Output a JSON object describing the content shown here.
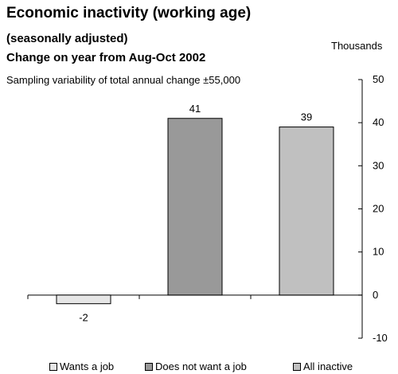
{
  "title": "Economic inactivity (working age)",
  "subtitle1": "(seasonally adjusted)",
  "subtitle2": "Change on year from Aug-Oct 2002",
  "note": "Sampling variability of total annual change  ±55,000",
  "units": "Thousands",
  "chart_data": {
    "type": "bar",
    "categories": [
      "Wants a job",
      "Does not want a job",
      "All inactive"
    ],
    "values": [
      -2,
      41,
      39
    ],
    "data_labels": [
      "-2",
      "41",
      "39"
    ],
    "colors": [
      "#e6e6e6",
      "#999999",
      "#c0c0c0"
    ],
    "ylim": [
      -10,
      50
    ],
    "yticks": [
      -10,
      0,
      10,
      20,
      30,
      40,
      50
    ],
    "ytick_labels": [
      "-10",
      "0",
      "10",
      "20",
      "30",
      "40",
      "50"
    ],
    "axis_position": "right",
    "legend_position": "bottom",
    "grid": false
  }
}
